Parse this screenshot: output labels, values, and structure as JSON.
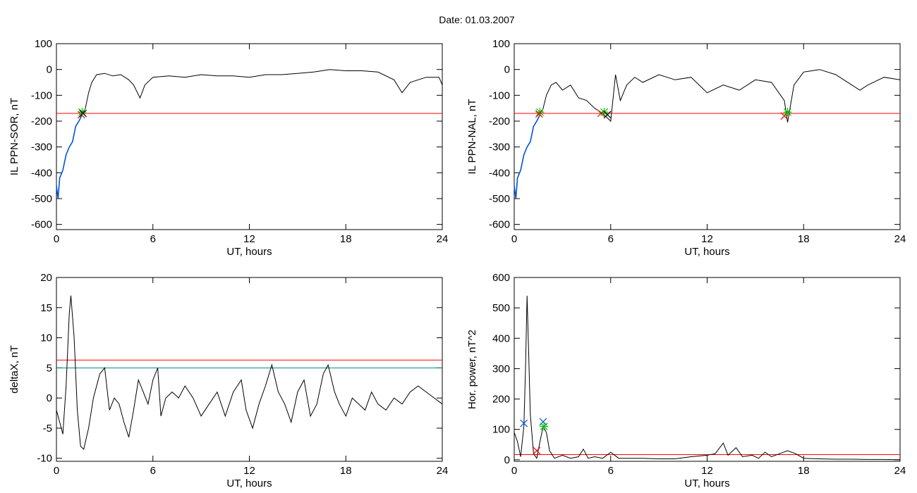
{
  "title": "Date:  01.03.2007",
  "chart_data": [
    {
      "type": "line",
      "ylabel": "IL PPN-SOR, nT",
      "xlabel": "UT, hours",
      "xlim": [
        0,
        24
      ],
      "ylim": [
        -620,
        100
      ],
      "xticks": [
        0,
        6,
        12,
        18,
        24
      ],
      "yticks": [
        100,
        0,
        -100,
        -200,
        -300,
        -400,
        -500,
        -600
      ],
      "threshold_lines": [
        {
          "value": -170,
          "color": "#ff0000"
        }
      ],
      "series": [
        {
          "color": "#000000",
          "points": [
            [
              0,
              -450
            ],
            [
              0.1,
              -500
            ],
            [
              0.2,
              -420
            ],
            [
              0.4,
              -390
            ],
            [
              0.6,
              -330
            ],
            [
              0.8,
              -300
            ],
            [
              1.0,
              -280
            ],
            [
              1.2,
              -220
            ],
            [
              1.4,
              -200
            ],
            [
              1.6,
              -175
            ],
            [
              1.8,
              -150
            ],
            [
              2.0,
              -90
            ],
            [
              2.2,
              -50
            ],
            [
              2.5,
              -20
            ],
            [
              3.0,
              -15
            ],
            [
              3.5,
              -25
            ],
            [
              4.0,
              -20
            ],
            [
              4.5,
              -40
            ],
            [
              4.8,
              -60
            ],
            [
              5.2,
              -110
            ],
            [
              5.5,
              -60
            ],
            [
              6.0,
              -30
            ],
            [
              7.0,
              -25
            ],
            [
              8.0,
              -30
            ],
            [
              9.0,
              -20
            ],
            [
              10.0,
              -25
            ],
            [
              11.0,
              -25
            ],
            [
              12.0,
              -30
            ],
            [
              13.0,
              -20
            ],
            [
              14.0,
              -20
            ],
            [
              15.0,
              -15
            ],
            [
              16.0,
              -10
            ],
            [
              17.0,
              0
            ],
            [
              18.0,
              -5
            ],
            [
              19.0,
              -5
            ],
            [
              20.0,
              -10
            ],
            [
              21.0,
              -40
            ],
            [
              21.5,
              -90
            ],
            [
              22.0,
              -50
            ],
            [
              23.0,
              -30
            ],
            [
              23.8,
              -30
            ],
            [
              24.0,
              -60
            ]
          ]
        },
        {
          "color": "#0055dd",
          "points": [
            [
              0,
              -450
            ],
            [
              0.1,
              -500
            ],
            [
              0.2,
              -420
            ],
            [
              0.4,
              -390
            ],
            [
              0.6,
              -330
            ],
            [
              0.8,
              -300
            ],
            [
              1.0,
              -280
            ],
            [
              1.2,
              -220
            ],
            [
              1.4,
              -200
            ],
            [
              1.6,
              -175
            ]
          ]
        }
      ],
      "markers": [
        {
          "x": 1.55,
          "y": -175,
          "symbol": "x",
          "color": "#ff0000"
        },
        {
          "x": 1.6,
          "y": -165,
          "symbol": "*",
          "color": "#00c000"
        },
        {
          "x": 1.65,
          "y": -170,
          "symbol": "x",
          "color": "#000000"
        }
      ]
    },
    {
      "type": "line",
      "ylabel": "IL PPN-NAL, nT",
      "xlabel": "UT, hours",
      "xlim": [
        0,
        24
      ],
      "ylim": [
        -620,
        100
      ],
      "xticks": [
        0,
        6,
        12,
        18,
        24
      ],
      "yticks": [
        100,
        0,
        -100,
        -200,
        -300,
        -400,
        -500,
        -600
      ],
      "threshold_lines": [
        {
          "value": -170,
          "color": "#ff0000"
        }
      ],
      "series": [
        {
          "color": "#000000",
          "points": [
            [
              0,
              -450
            ],
            [
              0.1,
              -500
            ],
            [
              0.2,
              -420
            ],
            [
              0.4,
              -390
            ],
            [
              0.6,
              -330
            ],
            [
              0.8,
              -300
            ],
            [
              1.0,
              -280
            ],
            [
              1.2,
              -220
            ],
            [
              1.4,
              -200
            ],
            [
              1.6,
              -175
            ],
            [
              1.8,
              -150
            ],
            [
              2.0,
              -100
            ],
            [
              2.3,
              -60
            ],
            [
              2.6,
              -50
            ],
            [
              3.0,
              -80
            ],
            [
              3.5,
              -60
            ],
            [
              4.0,
              -110
            ],
            [
              4.5,
              -120
            ],
            [
              5.0,
              -150
            ],
            [
              5.5,
              -170
            ],
            [
              6.0,
              -200
            ],
            [
              6.3,
              -20
            ],
            [
              6.6,
              -120
            ],
            [
              7.0,
              -60
            ],
            [
              7.5,
              -30
            ],
            [
              8.0,
              -50
            ],
            [
              9.0,
              -20
            ],
            [
              10.0,
              -40
            ],
            [
              11.0,
              -30
            ],
            [
              12.0,
              -90
            ],
            [
              13.0,
              -60
            ],
            [
              14.0,
              -80
            ],
            [
              15.0,
              -40
            ],
            [
              16.0,
              -50
            ],
            [
              16.8,
              -120
            ],
            [
              17.0,
              -205
            ],
            [
              17.4,
              -60
            ],
            [
              18.0,
              -10
            ],
            [
              19.0,
              0
            ],
            [
              20.0,
              -20
            ],
            [
              21.0,
              -60
            ],
            [
              21.5,
              -80
            ],
            [
              22.0,
              -60
            ],
            [
              23.0,
              -30
            ],
            [
              24.0,
              -40
            ]
          ]
        },
        {
          "color": "#0055dd",
          "points": [
            [
              0,
              -450
            ],
            [
              0.1,
              -500
            ],
            [
              0.2,
              -420
            ],
            [
              0.4,
              -390
            ],
            [
              0.6,
              -330
            ],
            [
              0.8,
              -300
            ],
            [
              1.0,
              -280
            ],
            [
              1.2,
              -220
            ],
            [
              1.4,
              -200
            ],
            [
              1.6,
              -175
            ]
          ]
        }
      ],
      "markers": [
        {
          "x": 1.6,
          "y": -165,
          "symbol": "*",
          "color": "#00c000"
        },
        {
          "x": 1.55,
          "y": -172,
          "symbol": "x",
          "color": "#ff0000"
        },
        {
          "x": 5.4,
          "y": -170,
          "symbol": "x",
          "color": "#ff0000"
        },
        {
          "x": 5.6,
          "y": -165,
          "symbol": "*",
          "color": "#00c000"
        },
        {
          "x": 5.8,
          "y": -175,
          "symbol": "x",
          "color": "#000000"
        },
        {
          "x": 16.8,
          "y": -180,
          "symbol": "x",
          "color": "#ff0000"
        },
        {
          "x": 17.0,
          "y": -165,
          "symbol": "*",
          "color": "#00c000"
        }
      ]
    },
    {
      "type": "line",
      "ylabel": "deltaX, nT",
      "xlabel": "UT, hours",
      "xlim": [
        0,
        24
      ],
      "ylim": [
        -10.5,
        20
      ],
      "xticks": [
        0,
        6,
        12,
        18,
        24
      ],
      "yticks": [
        20,
        15,
        10,
        5,
        0,
        -5,
        -10
      ],
      "threshold_lines": [
        {
          "value": 6.3,
          "color": "#ff0000"
        },
        {
          "value": 5.0,
          "color": "#008888"
        }
      ],
      "series": [
        {
          "color": "#000000",
          "points": [
            [
              0,
              -2
            ],
            [
              0.2,
              -4
            ],
            [
              0.4,
              -6
            ],
            [
              0.6,
              2
            ],
            [
              0.8,
              14
            ],
            [
              0.9,
              17
            ],
            [
              1.1,
              10
            ],
            [
              1.3,
              -2
            ],
            [
              1.5,
              -8
            ],
            [
              1.7,
              -8.5
            ],
            [
              2.0,
              -5
            ],
            [
              2.3,
              0
            ],
            [
              2.7,
              4
            ],
            [
              3.0,
              5
            ],
            [
              3.3,
              -2
            ],
            [
              3.6,
              0
            ],
            [
              3.9,
              -1
            ],
            [
              4.2,
              -4
            ],
            [
              4.5,
              -6.5
            ],
            [
              4.8,
              -2
            ],
            [
              5.1,
              3
            ],
            [
              5.4,
              1
            ],
            [
              5.7,
              -1
            ],
            [
              6.0,
              3
            ],
            [
              6.3,
              5
            ],
            [
              6.5,
              -3
            ],
            [
              6.8,
              0
            ],
            [
              7.2,
              1
            ],
            [
              7.6,
              0
            ],
            [
              8.0,
              2
            ],
            [
              8.5,
              0
            ],
            [
              9.0,
              -3
            ],
            [
              9.5,
              -1
            ],
            [
              10.0,
              1
            ],
            [
              10.5,
              -3
            ],
            [
              11.0,
              1
            ],
            [
              11.5,
              3
            ],
            [
              11.8,
              -2
            ],
            [
              12.2,
              -5
            ],
            [
              12.6,
              -1
            ],
            [
              13.0,
              2
            ],
            [
              13.4,
              5.5
            ],
            [
              13.8,
              1
            ],
            [
              14.2,
              -1
            ],
            [
              14.6,
              -4
            ],
            [
              15.0,
              1
            ],
            [
              15.4,
              3
            ],
            [
              15.8,
              -3
            ],
            [
              16.2,
              -1
            ],
            [
              16.6,
              4
            ],
            [
              16.9,
              5.5
            ],
            [
              17.3,
              1
            ],
            [
              17.6,
              -1
            ],
            [
              18.0,
              -3
            ],
            [
              18.4,
              0
            ],
            [
              18.8,
              -1
            ],
            [
              19.2,
              -2
            ],
            [
              19.6,
              1
            ],
            [
              20.0,
              -1
            ],
            [
              20.5,
              -2
            ],
            [
              21.0,
              0
            ],
            [
              21.5,
              -1
            ],
            [
              22.0,
              1
            ],
            [
              22.5,
              2
            ],
            [
              23.0,
              1
            ],
            [
              23.5,
              0
            ],
            [
              24.0,
              -1
            ]
          ]
        }
      ],
      "markers": []
    },
    {
      "type": "line",
      "ylabel": "Hor. power, nT^2",
      "xlabel": "UT, hours",
      "xlim": [
        0,
        24
      ],
      "ylim": [
        -5,
        600
      ],
      "xticks": [
        0,
        6,
        12,
        18,
        24
      ],
      "yticks": [
        600,
        500,
        400,
        300,
        200,
        100,
        0
      ],
      "threshold_lines": [
        {
          "value": 17,
          "color": "#ff0000"
        }
      ],
      "series": [
        {
          "color": "#000000",
          "points": [
            [
              0,
              90
            ],
            [
              0.2,
              60
            ],
            [
              0.4,
              10
            ],
            [
              0.6,
              110
            ],
            [
              0.7,
              300
            ],
            [
              0.8,
              540
            ],
            [
              0.9,
              350
            ],
            [
              1.0,
              150
            ],
            [
              1.2,
              20
            ],
            [
              1.4,
              5
            ],
            [
              1.6,
              60
            ],
            [
              1.8,
              110
            ],
            [
              2.0,
              90
            ],
            [
              2.2,
              30
            ],
            [
              2.5,
              5
            ],
            [
              3.0,
              15
            ],
            [
              3.5,
              5
            ],
            [
              4.0,
              10
            ],
            [
              4.3,
              35
            ],
            [
              4.6,
              5
            ],
            [
              5.0,
              10
            ],
            [
              5.5,
              5
            ],
            [
              6.0,
              25
            ],
            [
              6.5,
              5
            ],
            [
              7.0,
              5
            ],
            [
              8.0,
              5
            ],
            [
              9.0,
              3
            ],
            [
              10.0,
              3
            ],
            [
              11.0,
              10
            ],
            [
              12.0,
              15
            ],
            [
              12.5,
              20
            ],
            [
              13.0,
              55
            ],
            [
              13.3,
              15
            ],
            [
              13.8,
              40
            ],
            [
              14.2,
              10
            ],
            [
              14.8,
              15
            ],
            [
              15.2,
              5
            ],
            [
              15.6,
              25
            ],
            [
              16.0,
              10
            ],
            [
              16.5,
              20
            ],
            [
              17.0,
              30
            ],
            [
              17.5,
              20
            ],
            [
              18.0,
              5
            ],
            [
              19.0,
              3
            ],
            [
              20.0,
              2
            ],
            [
              21.0,
              2
            ],
            [
              22.0,
              1
            ],
            [
              23.0,
              1
            ],
            [
              24.0,
              0
            ]
          ]
        }
      ],
      "markers": [
        {
          "x": 0.6,
          "y": 120,
          "symbol": "x",
          "color": "#0055dd"
        },
        {
          "x": 1.4,
          "y": 30,
          "symbol": "x",
          "color": "#ff0000"
        },
        {
          "x": 1.8,
          "y": 125,
          "symbol": "x",
          "color": "#0055dd"
        },
        {
          "x": 1.85,
          "y": 110,
          "symbol": "*",
          "color": "#00c000"
        }
      ]
    }
  ]
}
